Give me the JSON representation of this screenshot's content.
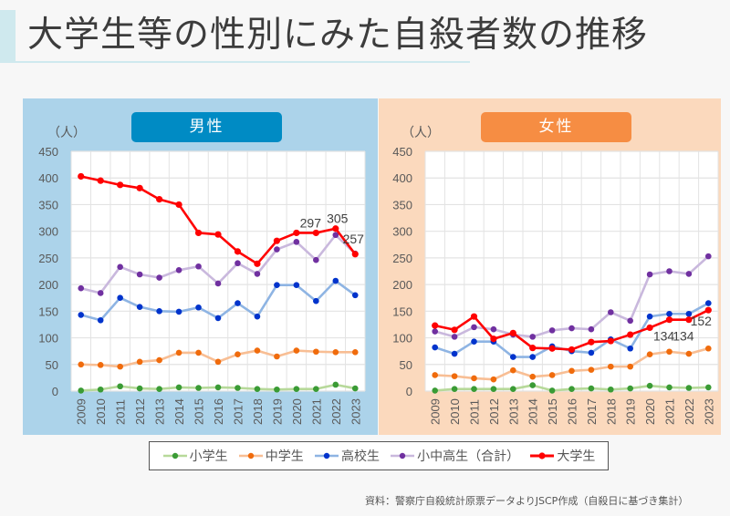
{
  "header": {
    "title": "大学生等の性別にみた自殺者数の推移"
  },
  "panels": {
    "male": {
      "label": "男性",
      "bg": "#acd3ea",
      "badge_color": "#008bc4"
    },
    "female": {
      "label": "女性",
      "bg": "#fbd9bd",
      "badge_color": "#f68d43"
    }
  },
  "legend": [
    {
      "name": "小学生",
      "color": "#3a9b35",
      "line": "#b7d99a"
    },
    {
      "name": "中学生",
      "color": "#f06b0c",
      "line": "#f8be94"
    },
    {
      "name": "高校生",
      "color": "#0033cc",
      "line": "#8eb4e3"
    },
    {
      "name": "小中高生（合計）",
      "color": "#7030a0",
      "line": "#c9b8dd"
    },
    {
      "name": "大学生",
      "color": "#ff0000",
      "line": "#ff0000"
    }
  ],
  "source": "資料：警察庁自殺統計原票データよりJSCP作成（自殺日に基づき集計）",
  "chart_data": [
    {
      "type": "line",
      "title": "男性",
      "ylabel": "（人）",
      "xlabel": "",
      "ylim": [
        0,
        450
      ],
      "yticks": [
        0,
        50,
        100,
        150,
        200,
        250,
        300,
        350,
        400,
        450
      ],
      "grid": true,
      "legend_position": "bottom",
      "categories": [
        "2009",
        "2010",
        "2011",
        "2012",
        "2013",
        "2014",
        "2015",
        "2016",
        "2017",
        "2018",
        "2019",
        "2020",
        "2021",
        "2022",
        "2023"
      ],
      "series": [
        {
          "name": "小学生",
          "values": [
            1,
            3,
            9,
            5,
            4,
            7,
            6,
            7,
            6,
            4,
            3,
            4,
            4,
            12,
            5
          ]
        },
        {
          "name": "中学生",
          "values": [
            50,
            49,
            46,
            55,
            58,
            72,
            72,
            55,
            69,
            76,
            65,
            76,
            74,
            73,
            73
          ]
        },
        {
          "name": "高校生",
          "values": [
            143,
            133,
            175,
            158,
            150,
            149,
            157,
            137,
            165,
            140,
            199,
            199,
            169,
            207,
            180
          ]
        },
        {
          "name": "小中高生（合計）",
          "values": [
            193,
            184,
            233,
            219,
            213,
            227,
            234,
            202,
            240,
            220,
            266,
            280,
            246,
            293,
            258
          ]
        },
        {
          "name": "大学生",
          "values": [
            403,
            395,
            387,
            381,
            360,
            350,
            297,
            294,
            262,
            239,
            282,
            297,
            297,
            305,
            257
          ]
        }
      ],
      "annotations": [
        {
          "series": "大学生",
          "category": "2021",
          "text": "297"
        },
        {
          "series": "大学生",
          "category": "2022",
          "text": "305"
        },
        {
          "series": "大学生",
          "category": "2023",
          "text": "257"
        }
      ]
    },
    {
      "type": "line",
      "title": "女性",
      "ylabel": "（人）",
      "xlabel": "",
      "ylim": [
        0,
        450
      ],
      "yticks": [
        0,
        50,
        100,
        150,
        200,
        250,
        300,
        350,
        400,
        450
      ],
      "grid": true,
      "legend_position": "bottom",
      "categories": [
        "2009",
        "2010",
        "2011",
        "2012",
        "2013",
        "2014",
        "2015",
        "2016",
        "2017",
        "2018",
        "2019",
        "2020",
        "2021",
        "2022",
        "2023"
      ],
      "series": [
        {
          "name": "小学生",
          "values": [
            1,
            4,
            4,
            4,
            4,
            11,
            1,
            4,
            5,
            3,
            5,
            10,
            7,
            6,
            7
          ]
        },
        {
          "name": "中学生",
          "values": [
            30,
            28,
            24,
            22,
            39,
            27,
            30,
            38,
            40,
            46,
            46,
            69,
            74,
            70,
            80
          ]
        },
        {
          "name": "高校生",
          "values": [
            82,
            70,
            93,
            93,
            64,
            64,
            84,
            75,
            72,
            97,
            80,
            140,
            145,
            145,
            165
          ]
        },
        {
          "name": "小中高生（合計）",
          "values": [
            112,
            102,
            120,
            116,
            106,
            102,
            114,
            118,
            116,
            148,
            132,
            219,
            225,
            220,
            253
          ]
        },
        {
          "name": "大学生",
          "values": [
            123,
            115,
            140,
            98,
            109,
            81,
            80,
            78,
            92,
            94,
            106,
            119,
            134,
            134,
            152
          ]
        }
      ],
      "annotations": [
        {
          "series": "大学生",
          "category": "2021",
          "text": "134"
        },
        {
          "series": "大学生",
          "category": "2022",
          "text": "134"
        },
        {
          "series": "大学生",
          "category": "2023",
          "text": "152"
        }
      ]
    }
  ]
}
